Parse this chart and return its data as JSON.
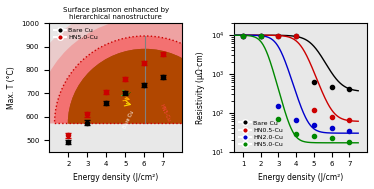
{
  "left_title": "Surface plasmon enhanced by\nhierarchical nanostructure",
  "left_xlabel": "Energy density (J/cm²)",
  "left_ylabel": "Max. T (°C)",
  "left_xlim": [
    1,
    8
  ],
  "left_ylim": [
    450,
    1000
  ],
  "left_xticks": [
    2,
    3,
    4,
    5,
    6,
    7
  ],
  "left_yticks": [
    500,
    600,
    700,
    800,
    900,
    1000
  ],
  "bare_cu_x": [
    2,
    3,
    4,
    5,
    6,
    7
  ],
  "bare_cu_y": [
    492,
    575,
    657,
    700,
    735,
    770
  ],
  "bare_cu_yerr": [
    8,
    10,
    8,
    8,
    8,
    8
  ],
  "hn5_cu_x": [
    2,
    3,
    4,
    5,
    6,
    7
  ],
  "hn5_cu_y": [
    520,
    610,
    707,
    760,
    830,
    868
  ],
  "hn5_cu_yerr": [
    10,
    10,
    8,
    8,
    8,
    8
  ],
  "right_xlabel": "Energy density (J/cm²)",
  "right_ylabel": "Resistivity (μΩ·cm)",
  "right_xlim": [
    0.5,
    8
  ],
  "right_xticks": [
    1,
    2,
    3,
    4,
    5,
    6,
    7
  ],
  "bare_cu_res_x": [
    1,
    2,
    3,
    4,
    5,
    6,
    7
  ],
  "bare_cu_res_y": [
    9500,
    9500,
    9500,
    9500,
    600,
    450,
    400
  ],
  "hn05_res_x": [
    1,
    2,
    3,
    4,
    5,
    6,
    7
  ],
  "hn05_res_y": [
    9500,
    9500,
    9500,
    9500,
    120,
    80,
    65
  ],
  "hn2_res_x": [
    1,
    2,
    3,
    4,
    5,
    6,
    7
  ],
  "hn2_res_y": [
    9500,
    9500,
    150,
    65,
    50,
    40,
    35
  ],
  "hn5_res_x": [
    1,
    2,
    3,
    4,
    5,
    6,
    7
  ],
  "hn5_res_y": [
    9500,
    9200,
    70,
    28,
    25,
    22,
    18
  ],
  "color_black": "#000000",
  "color_red": "#cc0000",
  "color_blue": "#0000cc",
  "color_green": "#008800",
  "bg_color": "#e8e8e8"
}
